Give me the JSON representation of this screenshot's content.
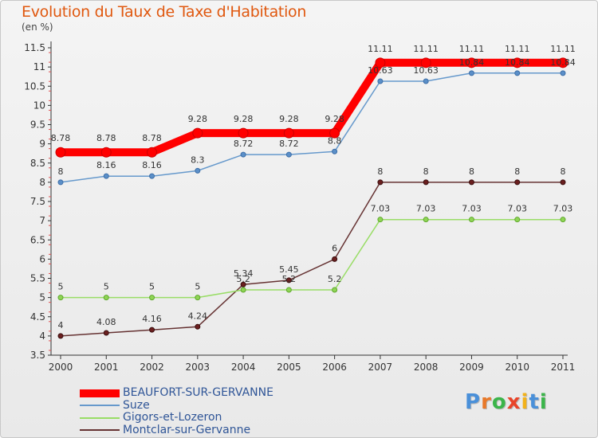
{
  "title": "Evolution du Taux de Taxe d'Habitation",
  "unit_label": "(en %)",
  "brand": {
    "text": "Proxiti",
    "letters": [
      {
        "ch": "P",
        "color": "#4a90d9"
      },
      {
        "ch": "r",
        "color": "#e8792a"
      },
      {
        "ch": "o",
        "color": "#3bb54a"
      },
      {
        "ch": "x",
        "color": "#e8452a"
      },
      {
        "ch": "i",
        "color": "#f2b21b"
      },
      {
        "ch": "t",
        "color": "#4a90d9"
      },
      {
        "ch": "i",
        "color": "#3bb54a"
      }
    ]
  },
  "legend": [
    {
      "label": "BEAUFORT-SUR-GERVANNE",
      "color": "#ff0000"
    },
    {
      "label": "Suze",
      "color": "#6699cc"
    },
    {
      "label": "Gigors-et-Lozeron",
      "color": "#99dd66"
    },
    {
      "label": "Montclar-sur-Gervanne",
      "color": "#663333"
    }
  ],
  "chart_data": {
    "type": "line",
    "title": "Evolution du Taux de Taxe d'Habitation",
    "ylabel": "(en %)",
    "xlabel": "",
    "x": [
      "2000",
      "2001",
      "2002",
      "2003",
      "2004",
      "2005",
      "2006",
      "2007",
      "2008",
      "2009",
      "2010",
      "2011"
    ],
    "ylim": [
      3.5,
      11.5
    ],
    "yticks": [
      "3.5",
      "4",
      "4.5",
      "5",
      "5.5",
      "6",
      "6.5",
      "7",
      "7.5",
      "8",
      "8.5",
      "9",
      "9.5",
      "10",
      "10.5",
      "11",
      "11.5"
    ],
    "grid": false,
    "legend_position": "bottom-left",
    "series": [
      {
        "name": "BEAUFORT-SUR-GERVANNE",
        "color": "#ff0000",
        "values": [
          8.78,
          8.78,
          8.78,
          9.28,
          9.28,
          9.28,
          9.28,
          11.11,
          11.11,
          11.11,
          11.11,
          11.11
        ],
        "labels": [
          "8.78",
          "8.78",
          "8.78",
          "9.28",
          "9.28",
          "9.28",
          "9.28",
          "11.11",
          "11.11",
          "11.11",
          "11.11",
          "11.11"
        ]
      },
      {
        "name": "Suze",
        "color": "#6699cc",
        "values": [
          8,
          8.16,
          8.16,
          8.3,
          8.72,
          8.72,
          8.8,
          10.63,
          10.63,
          10.84,
          10.84,
          10.84
        ],
        "labels": [
          "8",
          "8.16",
          "8.16",
          "8.3",
          "8.72",
          "8.72",
          "8.8",
          "10.63",
          "10.63",
          "10.84",
          "10.84",
          "10.84"
        ]
      },
      {
        "name": "Gigors-et-Lozeron",
        "color": "#99dd66",
        "values": [
          5,
          5,
          5,
          5,
          5.2,
          5.2,
          5.2,
          7.03,
          7.03,
          7.03,
          7.03,
          7.03
        ],
        "labels": [
          "5",
          "5",
          "5",
          "5",
          "5.2",
          "5.2",
          "5.2",
          "7.03",
          "7.03",
          "7.03",
          "7.03",
          "7.03"
        ]
      },
      {
        "name": "Montclar-sur-Gervanne",
        "color": "#663333",
        "values": [
          4,
          4.08,
          4.16,
          4.24,
          5.34,
          5.45,
          6,
          8,
          8,
          8,
          8,
          8
        ],
        "labels": [
          "4",
          "4.08",
          "4.16",
          "4.24",
          "5.34",
          "5.45",
          "6",
          "8",
          "8",
          "8",
          "8",
          "8"
        ]
      }
    ]
  }
}
